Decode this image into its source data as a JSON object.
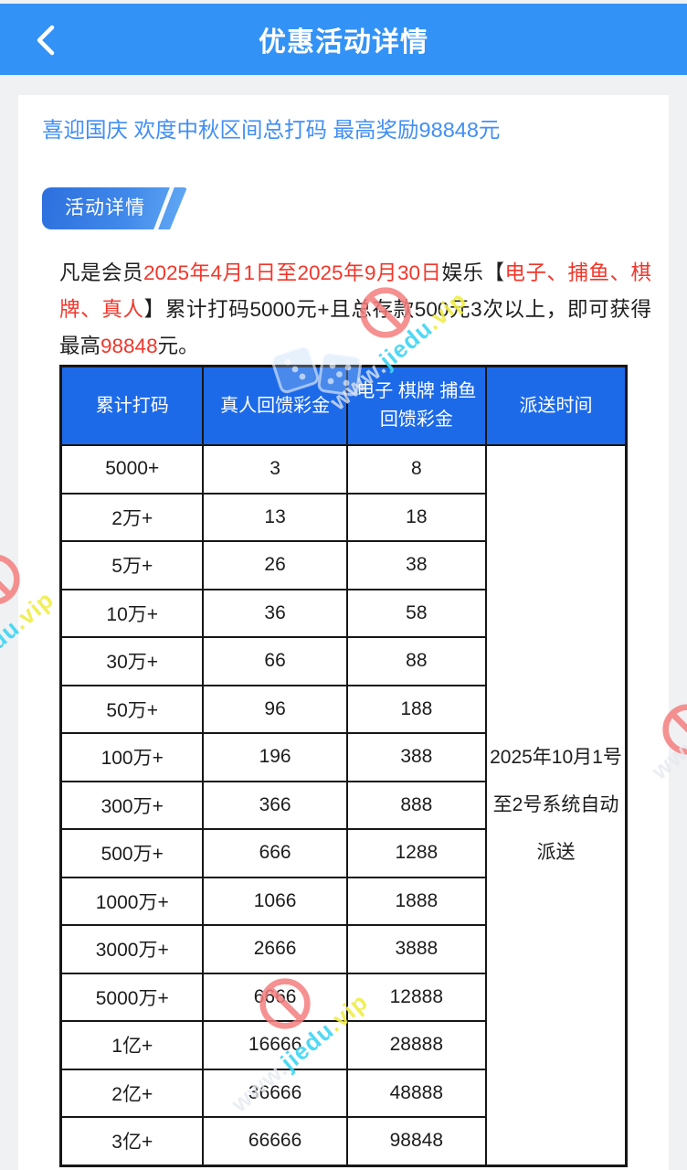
{
  "header": {
    "title": "优惠活动详情"
  },
  "promo": {
    "title": "喜迎国庆 欢度中秋区间总打码 最高奖励98848元"
  },
  "badge": {
    "label": "活动详情"
  },
  "description": {
    "segments": [
      {
        "text": "凡是会员",
        "style": "normal"
      },
      {
        "text": "2025年4月1日至2025年9月30日",
        "style": "red"
      },
      {
        "text": "娱乐【",
        "style": "normal"
      },
      {
        "text": "电子、捕鱼、棋牌、真人",
        "style": "red"
      },
      {
        "text": "】累计打码5000元+且总存款500元3次以上，即可获得最高",
        "style": "normal"
      },
      {
        "text": "98848",
        "style": "red"
      },
      {
        "text": "元。",
        "style": "normal"
      }
    ]
  },
  "table": {
    "headers": [
      "累计打码",
      "真人回馈彩金",
      "电子 棋牌 捕鱼回馈彩金",
      "派送时间"
    ],
    "rows": [
      [
        "5000+",
        "3",
        "8"
      ],
      [
        "2万+",
        "13",
        "18"
      ],
      [
        "5万+",
        "26",
        "38"
      ],
      [
        "10万+",
        "36",
        "58"
      ],
      [
        "30万+",
        "66",
        "88"
      ],
      [
        "50万+",
        "96",
        "188"
      ],
      [
        "100万+",
        "196",
        "388"
      ],
      [
        "300万+",
        "366",
        "888"
      ],
      [
        "500万+",
        "666",
        "1288"
      ],
      [
        "1000万+",
        "1066",
        "1888"
      ],
      [
        "3000万+",
        "2666",
        "3888"
      ],
      [
        "5000万+",
        "6666",
        "12888"
      ],
      [
        "1亿+",
        "16666",
        "28888"
      ],
      [
        "2亿+",
        "36666",
        "48888"
      ],
      [
        "3亿+",
        "66666",
        "98848"
      ]
    ],
    "delivery_time_lines": [
      "2025年10月1号",
      "至2号系统自动",
      "派送"
    ]
  },
  "watermark": {
    "www": "www.",
    "jiedu": "jiedu",
    "vip": ".vip"
  },
  "colors": {
    "header_bg": "#3392f5",
    "table_header_bg": "#1d6ae9",
    "promo_title": "#418ef5",
    "red_text": "#f2362a",
    "page_bg": "#eff1f2",
    "badge_grad_start": "#2c6fde",
    "badge_grad_end": "#64abf4",
    "wm_cyan": "#3dd5f3",
    "wm_yellow": "#f0ee45",
    "wm_red": "#f57e7e"
  }
}
